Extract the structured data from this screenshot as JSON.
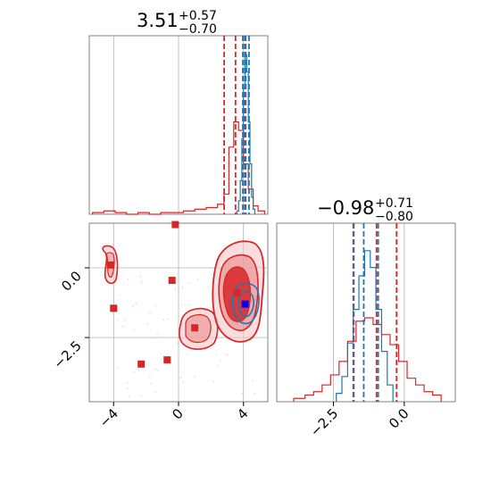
{
  "colors": {
    "red": "#d62728",
    "blue": "#1f77b4",
    "truth_marker": "#0000ff",
    "grid": "#b0b0b0",
    "frame": "#808080"
  },
  "chart_data": [
    {
      "type": "histogram",
      "panel": "top-left (parameter 1 marginal)",
      "title": {
        "median": "3.51",
        "upper": "+0.57",
        "lower": "−0.70"
      },
      "xlim": [
        -5.5,
        5.5
      ],
      "xticks": [
        -4,
        0,
        4
      ],
      "grid": true,
      "series": [
        {
          "color": "red",
          "bin_edges": [
            -5.3,
            -4.6,
            -3.9,
            -3.2,
            -2.5,
            -1.8,
            -1.1,
            -0.4,
            0.3,
            1.0,
            1.7,
            2.4,
            2.8,
            3.1,
            3.4,
            3.7,
            4.0,
            4.3,
            4.6,
            4.9,
            5.3
          ],
          "heights": [
            0.01,
            0.02,
            0.01,
            0.0,
            0.01,
            0.0,
            0.01,
            0.01,
            0.02,
            0.03,
            0.04,
            0.06,
            0.12,
            0.4,
            0.55,
            0.5,
            0.3,
            0.15,
            0.05,
            0.02
          ],
          "quantiles": [
            2.81,
            3.51,
            4.08
          ]
        },
        {
          "color": "blue",
          "bin_edges": [
            3.6,
            3.7,
            3.8,
            3.9,
            4.0,
            4.1,
            4.2,
            4.3,
            4.4,
            4.5,
            4.6,
            4.7
          ],
          "heights": [
            0.02,
            0.08,
            0.2,
            0.45,
            0.75,
            0.95,
            0.85,
            0.55,
            0.3,
            0.1,
            0.03
          ],
          "quantiles": [
            3.96,
            4.14,
            4.34
          ]
        }
      ]
    },
    {
      "type": "scatter-contour",
      "panel": "bottom-left (joint distribution)",
      "xlim": [
        -5.5,
        5.5
      ],
      "ylim": [
        -4.8,
        1.6
      ],
      "xticks": [
        -4,
        0,
        4
      ],
      "yticks": [
        0.0,
        -2.5
      ],
      "grid": true,
      "red_markers": [
        {
          "x": -0.2,
          "y": 1.55
        },
        {
          "x": -4.2,
          "y": 0.1
        },
        {
          "x": -0.4,
          "y": -0.45
        },
        {
          "x": -4.0,
          "y": -1.45
        },
        {
          "x": 3.6,
          "y": -0.9
        },
        {
          "x": 1.0,
          "y": -2.15
        },
        {
          "x": -0.7,
          "y": -3.3
        },
        {
          "x": -2.3,
          "y": -3.45
        }
      ],
      "truth_marker": {
        "x": 4.1,
        "y": -1.3
      }
    },
    {
      "type": "histogram",
      "panel": "bottom-right (parameter 2 marginal)",
      "title": {
        "median": "−0.98",
        "upper": "+0.71",
        "lower": "−0.80"
      },
      "xlim": [
        -4.5,
        1.8
      ],
      "xticks": [
        -2.5,
        0.0
      ],
      "grid": true,
      "series": [
        {
          "color": "red",
          "bin_edges": [
            -3.9,
            -3.5,
            -3.2,
            -2.9,
            -2.6,
            -2.3,
            -2.0,
            -1.7,
            -1.4,
            -1.1,
            -0.8,
            -0.5,
            -0.2,
            0.1,
            0.4,
            0.7,
            1.0,
            1.3
          ],
          "heights": [
            0.02,
            0.04,
            0.06,
            0.1,
            0.16,
            0.24,
            0.36,
            0.48,
            0.5,
            0.46,
            0.4,
            0.34,
            0.24,
            0.14,
            0.1,
            0.06,
            0.04
          ],
          "quantiles": [
            -1.78,
            -0.98,
            -0.27
          ]
        },
        {
          "color": "blue",
          "bin_edges": [
            -2.4,
            -2.2,
            -2.0,
            -1.8,
            -1.6,
            -1.4,
            -1.2,
            -1.0,
            -0.8,
            -0.6,
            -0.4
          ],
          "heights": [
            0.05,
            0.15,
            0.35,
            0.55,
            0.75,
            0.9,
            0.8,
            0.55,
            0.3,
            0.1
          ],
          "quantiles": [
            -1.8,
            -1.43,
            -0.92
          ]
        }
      ]
    }
  ]
}
